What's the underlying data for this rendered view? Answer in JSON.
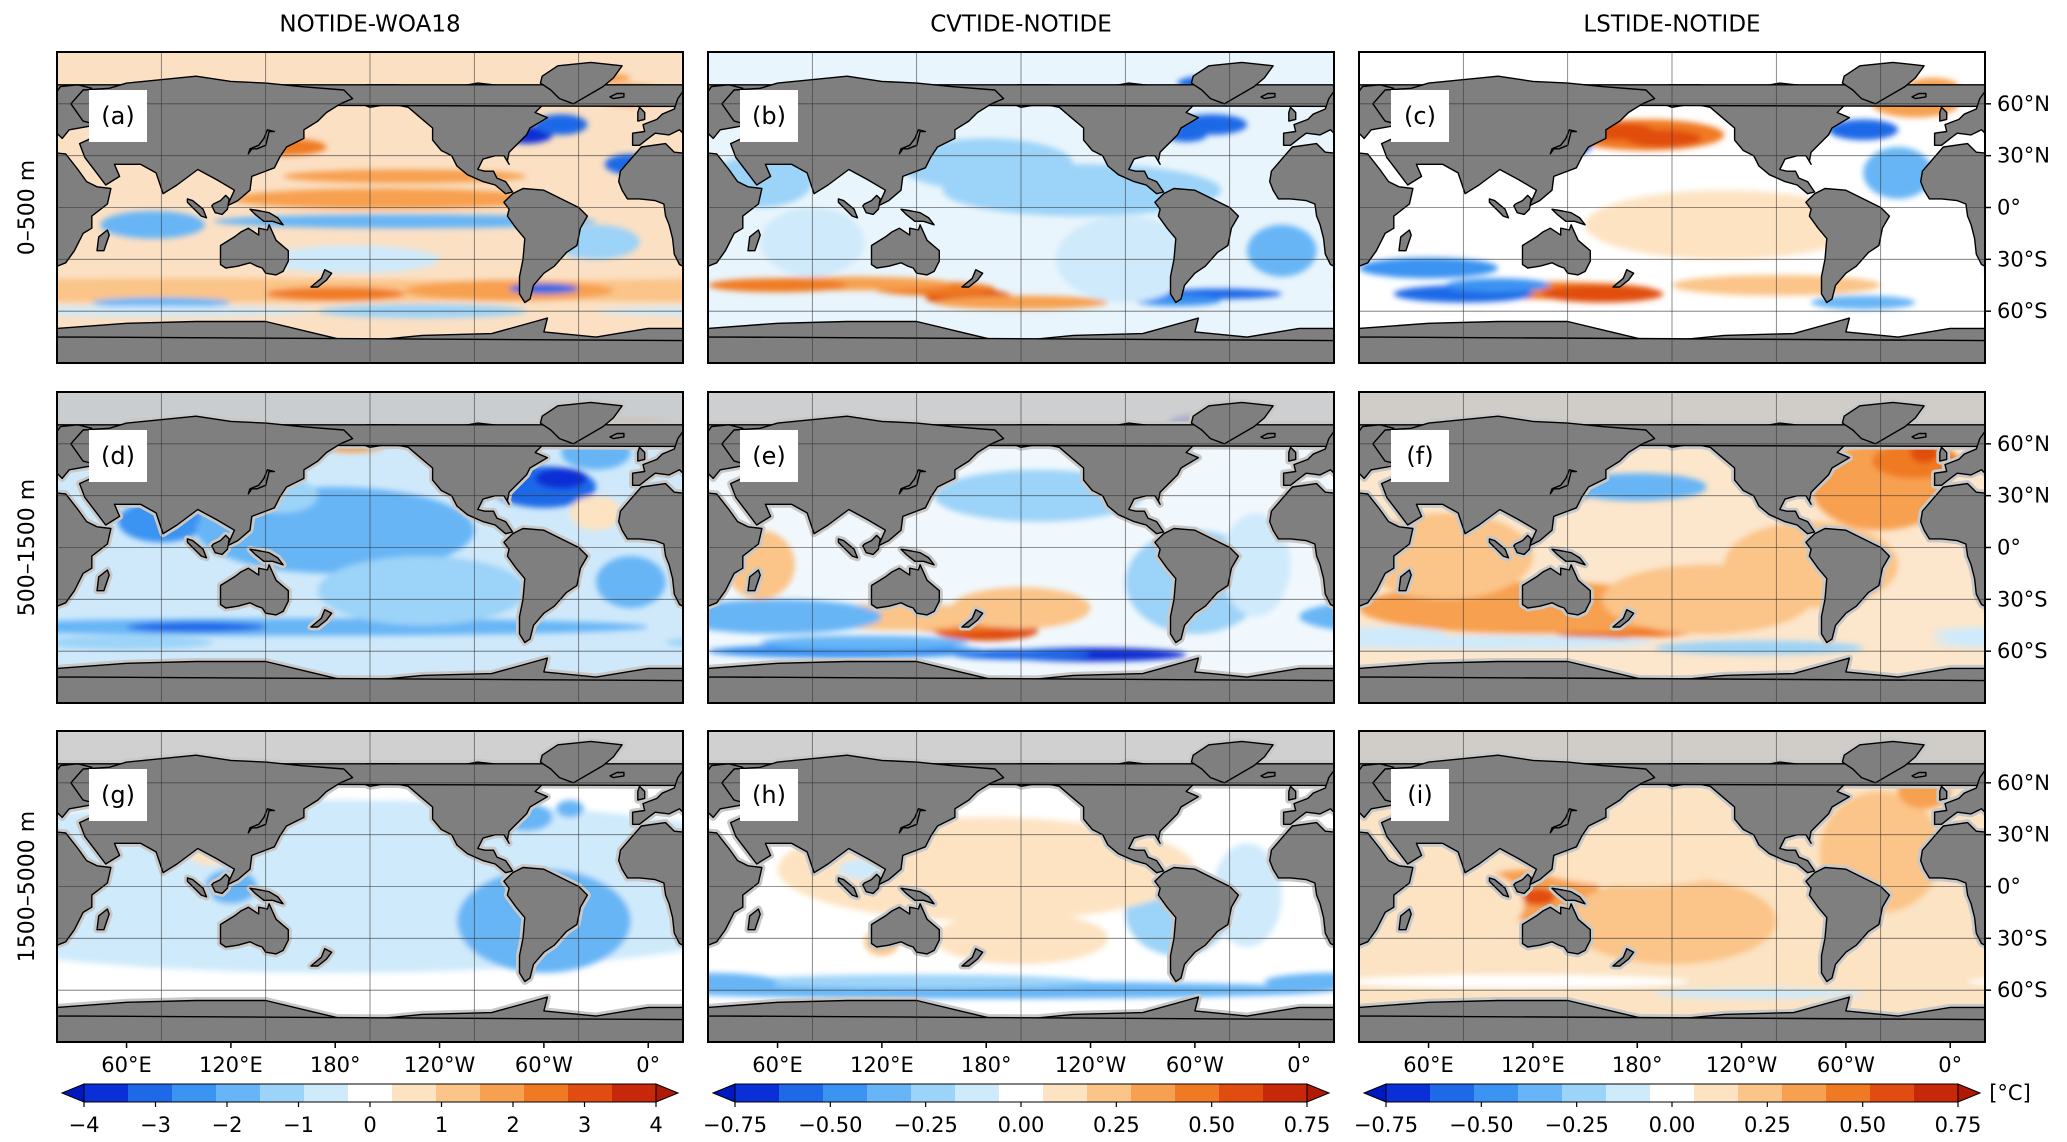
{
  "chart_data": {
    "type": "heatmap",
    "columns": [
      {
        "title": "NOTIDE-WOA18",
        "colorbar": {
          "ticks": [
            "-4",
            "-3",
            "-2",
            "-1",
            "0",
            "1",
            "2",
            "3",
            "4"
          ],
          "range": [
            -4,
            4
          ]
        }
      },
      {
        "title": "CVTIDE-NOTIDE",
        "colorbar": {
          "ticks": [
            "-0.75",
            "-0.50",
            "-0.25",
            "0.00",
            "0.25",
            "0.50",
            "0.75"
          ],
          "range": [
            -0.75,
            0.75
          ]
        }
      },
      {
        "title": "LSTIDE-NOTIDE",
        "colorbar": {
          "ticks": [
            "-0.75",
            "-0.50",
            "-0.25",
            "0.00",
            "0.25",
            "0.50",
            "0.75"
          ],
          "range": [
            -0.75,
            0.75
          ]
        }
      }
    ],
    "rows": [
      "0–500 m",
      "500–1500 m",
      "1500–5000 m"
    ],
    "panel_labels": [
      "(a)",
      "(b)",
      "(c)",
      "(d)",
      "(e)",
      "(f)",
      "(g)",
      "(h)",
      "(i)"
    ],
    "x_ticks": [
      "60°E",
      "120°E",
      "180°",
      "120°W",
      "60°W",
      "0°"
    ],
    "y_ticks": [
      "60°N",
      "30°N",
      "0°",
      "30°S",
      "60°S"
    ],
    "colorbar_unit": "[°C]",
    "grid": true,
    "colors": {
      "land": "#7f7f7f",
      "shelf": "#c8c8c8",
      "scale": [
        "#0a2fd6",
        "#1f69e8",
        "#3b93f2",
        "#67b5f6",
        "#9cd3f8",
        "#cfeafb",
        "#ffffff",
        "#fde3c2",
        "#fbc488",
        "#f7a04f",
        "#f07a24",
        "#e14d10",
        "#c8280a"
      ]
    }
  }
}
